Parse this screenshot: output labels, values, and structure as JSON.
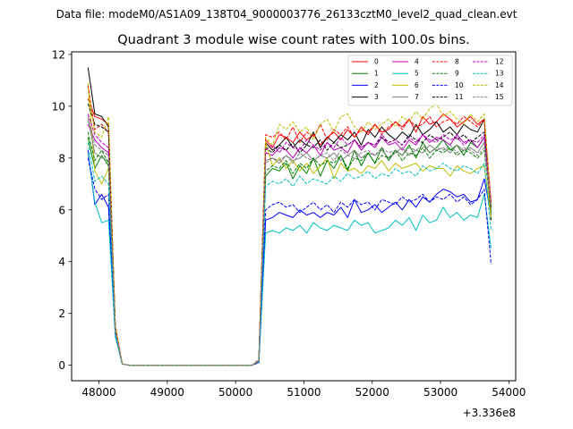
{
  "suptitle": "Data file: modeM0/AS1A09_138T04_9000003776_26133cztM0_level2_quad_clean.evt",
  "chart_data": {
    "type": "line",
    "title": "Quadrant 3 module wise count rates with 100.0s bins.",
    "xlabel": "",
    "ylabel": "",
    "x_offset_text": "+3.336e8",
    "xlim": [
      47600,
      54100
    ],
    "ylim": [
      -0.6,
      12.1
    ],
    "xticks": [
      48000,
      49000,
      50000,
      51000,
      52000,
      53000,
      54000
    ],
    "yticks": [
      0,
      2,
      4,
      6,
      8,
      10,
      12
    ],
    "grid": false,
    "legend_position": "top-right",
    "x": [
      47840,
      47940,
      48040,
      48140,
      48240,
      48340,
      48440,
      48540,
      48640,
      48740,
      48840,
      48940,
      49040,
      49140,
      49240,
      49340,
      49440,
      49540,
      49640,
      49740,
      49840,
      49940,
      50040,
      50140,
      50240,
      50340,
      50440,
      50540,
      50640,
      50740,
      50840,
      50940,
      51040,
      51140,
      51240,
      51340,
      51440,
      51540,
      51640,
      51740,
      51840,
      51940,
      52040,
      52140,
      52240,
      52340,
      52440,
      52540,
      52640,
      52740,
      52840,
      52940,
      53040,
      53140,
      53240,
      53340,
      53440,
      53540,
      53640,
      53740
    ],
    "series": [
      {
        "name": "0",
        "color": "#ff0000",
        "dash": "solid",
        "values": [
          10.3,
          9.6,
          9.5,
          9.3,
          1.5,
          0.05,
          0,
          0,
          0,
          0,
          0,
          0,
          0,
          0,
          0,
          0,
          0,
          0,
          0,
          0,
          0,
          0,
          0,
          0,
          0,
          0.2,
          8.7,
          8.4,
          8.9,
          8.8,
          8.6,
          9.0,
          8.7,
          8.9,
          8.5,
          8.8,
          9.0,
          8.7,
          9.1,
          8.8,
          9.2,
          8.9,
          9.3,
          9.0,
          9.1,
          9.4,
          9.2,
          9.5,
          9.0,
          9.6,
          9.3,
          9.4,
          9.7,
          9.5,
          9.2,
          9.4,
          9.6,
          9.3,
          9.5,
          6.3
        ]
      },
      {
        "name": "1",
        "color": "#008000",
        "dash": "solid",
        "values": [
          8.8,
          7.6,
          8.1,
          7.7,
          1.3,
          0.05,
          0,
          0,
          0,
          0,
          0,
          0,
          0,
          0,
          0,
          0,
          0,
          0,
          0,
          0,
          0,
          0,
          0,
          0,
          0,
          0.15,
          7.3,
          7.6,
          7.5,
          7.8,
          7.2,
          7.7,
          7.4,
          8.0,
          7.3,
          7.9,
          7.6,
          8.1,
          7.5,
          8.3,
          7.7,
          8.2,
          7.8,
          8.4,
          7.9,
          8.3,
          8.1,
          8.5,
          8.0,
          8.6,
          8.2,
          8.4,
          8.7,
          8.3,
          8.5,
          8.1,
          8.6,
          8.4,
          8.8,
          6.2
        ]
      },
      {
        "name": "2",
        "color": "#0000ff",
        "dash": "solid",
        "values": [
          8.3,
          6.2,
          6.6,
          6.1,
          1.2,
          0.05,
          0,
          0,
          0,
          0,
          0,
          0,
          0,
          0,
          0,
          0,
          0,
          0,
          0,
          0,
          0,
          0,
          0,
          0,
          0,
          0.1,
          5.6,
          5.7,
          5.9,
          5.8,
          5.7,
          6.0,
          5.8,
          5.9,
          5.7,
          5.9,
          5.8,
          6.1,
          5.7,
          6.4,
          5.9,
          6.0,
          6.2,
          5.9,
          6.1,
          6.3,
          6.0,
          6.4,
          6.1,
          6.5,
          6.3,
          6.6,
          6.8,
          6.7,
          6.5,
          6.6,
          6.3,
          6.4,
          7.2,
          5.8
        ]
      },
      {
        "name": "3",
        "color": "#000000",
        "dash": "solid",
        "values": [
          11.5,
          9.7,
          9.6,
          9.2,
          1.5,
          0.05,
          0,
          0,
          0,
          0,
          0,
          0,
          0,
          0,
          0,
          0,
          0,
          0,
          0,
          0,
          0,
          0,
          0,
          0,
          0,
          0.2,
          8.6,
          8.3,
          8.5,
          8.8,
          8.4,
          8.7,
          8.5,
          9.0,
          8.4,
          8.8,
          8.6,
          8.9,
          8.7,
          9.0,
          8.5,
          9.1,
          8.8,
          9.2,
          8.9,
          8.7,
          9.0,
          8.8,
          9.3,
          8.9,
          9.1,
          9.4,
          9.0,
          9.2,
          8.9,
          9.3,
          9.1,
          9.0,
          9.5,
          5.6
        ]
      },
      {
        "name": "4",
        "color": "#bf00bf",
        "dash": "solid",
        "values": [
          9.3,
          8.7,
          8.4,
          8.2,
          1.4,
          0.05,
          0,
          0,
          0,
          0,
          0,
          0,
          0,
          0,
          0,
          0,
          0,
          0,
          0,
          0,
          0,
          0,
          0,
          0,
          0,
          0.2,
          8.2,
          8.1,
          8.4,
          8.3,
          8.0,
          8.4,
          8.2,
          8.5,
          8.1,
          8.6,
          8.3,
          8.4,
          8.2,
          8.7,
          8.3,
          8.6,
          8.4,
          8.8,
          8.5,
          8.6,
          8.3,
          8.7,
          8.5,
          8.9,
          8.6,
          8.8,
          8.7,
          8.5,
          8.9,
          8.6,
          8.7,
          8.4,
          8.8,
          6.0
        ]
      },
      {
        "name": "5",
        "color": "#00bfbf",
        "dash": "solid",
        "values": [
          8.2,
          6.3,
          5.5,
          5.6,
          1.1,
          0.05,
          0,
          0,
          0,
          0,
          0,
          0,
          0,
          0,
          0,
          0,
          0,
          0,
          0,
          0,
          0,
          0,
          0,
          0,
          0,
          0.1,
          5.1,
          5.2,
          5.1,
          5.3,
          5.2,
          5.4,
          5.1,
          5.5,
          5.3,
          5.2,
          5.4,
          5.3,
          5.2,
          5.6,
          5.4,
          5.5,
          5.1,
          5.2,
          5.3,
          5.6,
          5.4,
          5.7,
          5.2,
          5.8,
          5.5,
          5.6,
          6.1,
          5.7,
          5.9,
          5.6,
          5.8,
          5.7,
          6.6,
          4.5
        ]
      },
      {
        "name": "6",
        "color": "#bfbf00",
        "dash": "solid",
        "values": [
          10.9,
          7.5,
          7.0,
          7.6,
          1.4,
          0.05,
          0,
          0,
          0,
          0,
          0,
          0,
          0,
          0,
          0,
          0,
          0,
          0,
          0,
          0,
          0,
          0,
          0,
          0,
          0,
          0.2,
          8.6,
          7.7,
          8.0,
          7.6,
          7.9,
          7.5,
          7.8,
          7.4,
          7.7,
          8.0,
          7.2,
          7.8,
          7.5,
          7.6,
          7.4,
          7.7,
          7.6,
          7.9,
          7.5,
          7.8,
          7.6,
          7.7,
          7.8,
          7.5,
          7.7,
          7.6,
          7.6,
          7.3,
          7.7,
          7.5,
          7.4,
          7.6,
          7.7,
          5.7
        ]
      },
      {
        "name": "7",
        "color": "#808080",
        "dash": "solid",
        "values": [
          9.5,
          8.2,
          8.0,
          7.9,
          1.3,
          0.05,
          0,
          0,
          0,
          0,
          0,
          0,
          0,
          0,
          0,
          0,
          0,
          0,
          0,
          0,
          0,
          0,
          0,
          0,
          0,
          0.15,
          7.9,
          8.0,
          7.8,
          8.1,
          7.9,
          8.0,
          8.2,
          7.9,
          8.1,
          8.0,
          8.2,
          7.9,
          8.1,
          8.3,
          8.0,
          8.2,
          8.1,
          8.3,
          8.0,
          8.2,
          8.4,
          8.1,
          8.3,
          8.2,
          8.5,
          8.3,
          8.4,
          8.2,
          8.5,
          8.3,
          8.4,
          8.2,
          8.6,
          6.1
        ]
      },
      {
        "name": "8",
        "color": "#ff0000",
        "dash": "dashed",
        "values": [
          10.8,
          9.1,
          9.3,
          9.0,
          1.5,
          0.05,
          0,
          0,
          0,
          0,
          0,
          0,
          0,
          0,
          0,
          0,
          0,
          0,
          0,
          0,
          0,
          0,
          0,
          0,
          0,
          0.2,
          8.9,
          8.8,
          9.0,
          8.7,
          9.2,
          8.6,
          9.0,
          8.8,
          9.3,
          8.7,
          9.1,
          8.9,
          9.2,
          8.8,
          9.1,
          9.0,
          9.3,
          8.9,
          9.2,
          9.4,
          9.1,
          9.5,
          9.2,
          9.3,
          9.6,
          9.2,
          9.4,
          9.5,
          9.3,
          9.6,
          9.4,
          9.2,
          9.5,
          6.0
        ]
      },
      {
        "name": "9",
        "color": "#008000",
        "dash": "dashed",
        "values": [
          9.0,
          7.9,
          8.3,
          7.8,
          1.3,
          0.05,
          0,
          0,
          0,
          0,
          0,
          0,
          0,
          0,
          0,
          0,
          0,
          0,
          0,
          0,
          0,
          0,
          0,
          0,
          0,
          0.15,
          7.5,
          7.7,
          7.6,
          7.9,
          7.4,
          7.8,
          7.6,
          8.0,
          7.7,
          7.9,
          7.8,
          8.1,
          7.6,
          8.0,
          7.9,
          8.2,
          7.8,
          8.1,
          8.0,
          8.3,
          7.9,
          8.2,
          8.1,
          8.4,
          8.0,
          8.3,
          8.2,
          8.4,
          8.1,
          8.3,
          8.2,
          8.0,
          8.3,
          5.9
        ]
      },
      {
        "name": "10",
        "color": "#0000ff",
        "dash": "dashed",
        "values": [
          8.0,
          6.8,
          6.4,
          6.6,
          1.2,
          0.05,
          0,
          0,
          0,
          0,
          0,
          0,
          0,
          0,
          0,
          0,
          0,
          0,
          0,
          0,
          0,
          0,
          0,
          0,
          0,
          0.1,
          6.0,
          6.2,
          6.3,
          6.1,
          6.2,
          5.9,
          6.1,
          6.3,
          6.0,
          6.2,
          5.9,
          6.3,
          6.1,
          6.4,
          6.2,
          6.3,
          6.0,
          6.4,
          6.3,
          6.2,
          6.5,
          6.3,
          6.4,
          6.6,
          6.3,
          6.5,
          6.4,
          6.6,
          6.3,
          6.5,
          6.2,
          6.4,
          6.8,
          3.9
        ]
      },
      {
        "name": "11",
        "color": "#000000",
        "dash": "dashed",
        "values": [
          10.1,
          9.3,
          9.2,
          9.0,
          1.4,
          0.05,
          0,
          0,
          0,
          0,
          0,
          0,
          0,
          0,
          0,
          0,
          0,
          0,
          0,
          0,
          0,
          0,
          0,
          0,
          0,
          0.2,
          8.4,
          8.2,
          8.5,
          8.3,
          8.6,
          8.2,
          8.5,
          8.4,
          8.7,
          8.3,
          8.6,
          8.4,
          8.5,
          8.7,
          8.4,
          8.6,
          8.5,
          8.8,
          8.6,
          8.7,
          8.5,
          8.9,
          8.7,
          8.6,
          8.9,
          8.7,
          8.8,
          9.0,
          8.7,
          8.9,
          8.6,
          8.8,
          9.0,
          6.1
        ]
      },
      {
        "name": "12",
        "color": "#bf00bf",
        "dash": "dashed",
        "values": [
          9.7,
          8.9,
          8.6,
          8.4,
          1.4,
          0.05,
          0,
          0,
          0,
          0,
          0,
          0,
          0,
          0,
          0,
          0,
          0,
          0,
          0,
          0,
          0,
          0,
          0,
          0,
          0,
          0.2,
          8.3,
          8.5,
          8.2,
          8.6,
          8.4,
          8.3,
          8.7,
          8.5,
          8.3,
          8.6,
          8.4,
          8.8,
          8.5,
          8.7,
          8.4,
          8.6,
          8.5,
          8.9,
          8.6,
          8.7,
          8.5,
          8.8,
          8.6,
          8.9,
          8.7,
          8.6,
          8.9,
          8.7,
          8.8,
          8.5,
          8.7,
          8.6,
          8.9,
          6.2
        ]
      },
      {
        "name": "13",
        "color": "#00bfbf",
        "dash": "dashed",
        "values": [
          8.6,
          7.1,
          7.3,
          7.0,
          1.2,
          0.05,
          0,
          0,
          0,
          0,
          0,
          0,
          0,
          0,
          0,
          0,
          0,
          0,
          0,
          0,
          0,
          0,
          0,
          0,
          0,
          0.15,
          6.9,
          7.1,
          7.0,
          7.2,
          6.9,
          7.3,
          7.0,
          7.2,
          7.1,
          7.0,
          7.3,
          7.1,
          7.4,
          7.2,
          7.3,
          7.5,
          7.2,
          7.4,
          7.3,
          7.6,
          7.4,
          7.5,
          7.3,
          7.7,
          7.5,
          7.6,
          7.8,
          7.6,
          7.5,
          7.7,
          7.6,
          7.4,
          7.8,
          5.2
        ]
      },
      {
        "name": "14",
        "color": "#bfbf00",
        "dash": "dashed",
        "values": [
          10.7,
          9.0,
          8.8,
          9.6,
          1.5,
          0.05,
          0,
          0,
          0,
          0,
          0,
          0,
          0,
          0,
          0,
          0,
          0,
          0,
          0,
          0,
          0,
          0,
          0,
          0,
          0,
          0.2,
          8.8,
          8.5,
          9.3,
          9.1,
          9.4,
          9.0,
          9.2,
          8.7,
          9.3,
          9.5,
          9.0,
          9.6,
          9.7,
          9.2,
          9.0,
          9.4,
          9.1,
          9.3,
          9.5,
          9.2,
          9.6,
          9.4,
          9.8,
          9.5,
          9.9,
          10.1,
          9.6,
          9.8,
          9.5,
          9.3,
          9.7,
          9.4,
          9.7,
          6.0
        ]
      },
      {
        "name": "15",
        "color": "#808080",
        "dash": "dashed",
        "values": [
          9.6,
          8.5,
          8.3,
          8.1,
          1.3,
          0.05,
          0,
          0,
          0,
          0,
          0,
          0,
          0,
          0,
          0,
          0,
          0,
          0,
          0,
          0,
          0,
          0,
          0,
          0,
          0,
          0.15,
          7.8,
          8.0,
          7.9,
          8.1,
          7.8,
          8.2,
          8.0,
          7.9,
          8.1,
          8.2,
          7.9,
          8.3,
          8.1,
          8.0,
          8.2,
          8.3,
          8.1,
          8.4,
          8.2,
          8.3,
          8.1,
          8.4,
          8.3,
          8.5,
          8.2,
          8.4,
          8.3,
          8.5,
          8.2,
          8.4,
          8.3,
          8.1,
          8.4,
          6.0
        ]
      }
    ]
  }
}
